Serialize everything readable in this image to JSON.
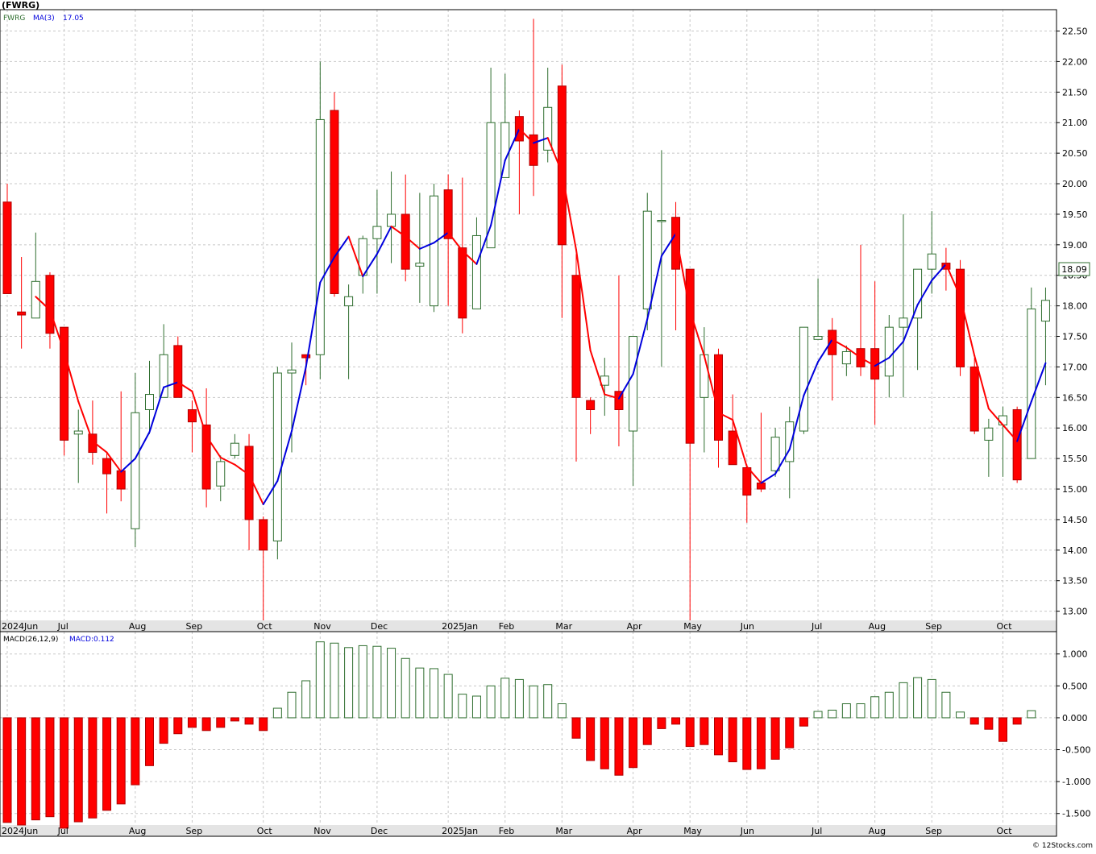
{
  "header": {
    "title": "(FWRG)"
  },
  "price_legend": {
    "symbol": "FWRG",
    "ma_label": "MA(3)",
    "ma_value": "17.05"
  },
  "macd_legend": {
    "label": "MACD(26,12,9)",
    "value_label": "MACD:0.112"
  },
  "last_price": "18.09",
  "footer": {
    "credit": "© 12Stocks.com"
  },
  "colors": {
    "up": "#2f6e2f",
    "down": "#ff0000",
    "ma_up": "#0000dd",
    "ma_down": "#ff0000",
    "grid": "#c8c8c8",
    "axis_band": "#e4e4e4",
    "background": "#ffffff"
  },
  "chart_data": [
    {
      "type": "candlestick",
      "title": "(FWRG)",
      "ylim": [
        12.85,
        22.85
      ],
      "yticks": [
        "13.00",
        "13.50",
        "14.00",
        "14.50",
        "15.00",
        "15.50",
        "16.00",
        "16.50",
        "17.00",
        "17.50",
        "18.00",
        "18.50",
        "19.00",
        "19.50",
        "20.00",
        "20.50",
        "21.00",
        "21.50",
        "22.00",
        "22.50"
      ],
      "x_labels": [
        {
          "label": "2024Jun",
          "index": 0
        },
        {
          "label": "Jul",
          "index": 4
        },
        {
          "label": "Aug",
          "index": 9
        },
        {
          "label": "Sep",
          "index": 13
        },
        {
          "label": "Oct",
          "index": 18
        },
        {
          "label": "Nov",
          "index": 22
        },
        {
          "label": "Dec",
          "index": 26
        },
        {
          "label": "2025Jan",
          "index": 31
        },
        {
          "label": "Feb",
          "index": 35
        },
        {
          "label": "Mar",
          "index": 39
        },
        {
          "label": "Apr",
          "index": 44
        },
        {
          "label": "May",
          "index": 48
        },
        {
          "label": "Jun",
          "index": 52
        },
        {
          "label": "Jul",
          "index": 57
        },
        {
          "label": "Aug",
          "index": 61
        },
        {
          "label": "Sep",
          "index": 65
        },
        {
          "label": "Oct",
          "index": 70
        }
      ],
      "grid": true,
      "ohlc": [
        {
          "o": 19.7,
          "h": 20.0,
          "l": 18.2,
          "c": 18.2
        },
        {
          "o": 17.9,
          "h": 18.8,
          "l": 17.3,
          "c": 17.85
        },
        {
          "o": 17.8,
          "h": 19.2,
          "l": 17.8,
          "c": 18.4
        },
        {
          "o": 18.5,
          "h": 18.55,
          "l": 17.3,
          "c": 17.55
        },
        {
          "o": 17.65,
          "h": 17.65,
          "l": 15.55,
          "c": 15.8
        },
        {
          "o": 15.9,
          "h": 16.3,
          "l": 15.1,
          "c": 15.95
        },
        {
          "o": 15.9,
          "h": 16.45,
          "l": 15.4,
          "c": 15.6
        },
        {
          "o": 15.5,
          "h": 15.6,
          "l": 14.6,
          "c": 15.25
        },
        {
          "o": 15.3,
          "h": 16.6,
          "l": 14.8,
          "c": 15.0
        },
        {
          "o": 14.35,
          "h": 16.9,
          "l": 14.05,
          "c": 16.25
        },
        {
          "o": 16.3,
          "h": 17.1,
          "l": 15.9,
          "c": 16.55
        },
        {
          "o": 16.5,
          "h": 17.7,
          "l": 16.5,
          "c": 17.2
        },
        {
          "o": 17.35,
          "h": 17.5,
          "l": 16.5,
          "c": 16.5
        },
        {
          "o": 16.3,
          "h": 16.45,
          "l": 15.6,
          "c": 16.1
        },
        {
          "o": 16.05,
          "h": 16.65,
          "l": 14.7,
          "c": 15.0
        },
        {
          "o": 15.05,
          "h": 15.55,
          "l": 14.8,
          "c": 15.45
        },
        {
          "o": 15.55,
          "h": 15.9,
          "l": 15.5,
          "c": 15.75
        },
        {
          "o": 15.7,
          "h": 15.9,
          "l": 14.0,
          "c": 14.5
        },
        {
          "o": 14.5,
          "h": 14.55,
          "l": 12.85,
          "c": 14.0
        },
        {
          "o": 14.15,
          "h": 17.0,
          "l": 13.85,
          "c": 16.9
        },
        {
          "o": 16.9,
          "h": 17.4,
          "l": 15.6,
          "c": 16.95
        },
        {
          "o": 17.2,
          "h": 17.2,
          "l": 16.7,
          "c": 17.15
        },
        {
          "o": 17.2,
          "h": 22.0,
          "l": 16.8,
          "c": 21.05
        },
        {
          "o": 21.2,
          "h": 21.5,
          "l": 18.15,
          "c": 18.2
        },
        {
          "o": 18.0,
          "h": 18.35,
          "l": 16.8,
          "c": 18.15
        },
        {
          "o": 18.5,
          "h": 19.15,
          "l": 18.2,
          "c": 19.1
        },
        {
          "o": 19.1,
          "h": 19.9,
          "l": 18.2,
          "c": 19.3
        },
        {
          "o": 19.3,
          "h": 20.2,
          "l": 18.7,
          "c": 19.5
        },
        {
          "o": 19.5,
          "h": 20.15,
          "l": 18.4,
          "c": 18.6
        },
        {
          "o": 18.65,
          "h": 19.85,
          "l": 18.05,
          "c": 18.7
        },
        {
          "o": 18.0,
          "h": 20.0,
          "l": 17.9,
          "c": 19.8
        },
        {
          "o": 19.9,
          "h": 20.15,
          "l": 18.0,
          "c": 19.1
        },
        {
          "o": 18.95,
          "h": 20.1,
          "l": 17.55,
          "c": 17.8
        },
        {
          "o": 17.95,
          "h": 19.45,
          "l": 17.95,
          "c": 19.15
        },
        {
          "o": 18.95,
          "h": 21.9,
          "l": 18.95,
          "c": 21.0
        },
        {
          "o": 20.1,
          "h": 21.8,
          "l": 20.1,
          "c": 21.0
        },
        {
          "o": 21.1,
          "h": 21.2,
          "l": 19.5,
          "c": 20.7
        },
        {
          "o": 20.8,
          "h": 22.7,
          "l": 19.8,
          "c": 20.3
        },
        {
          "o": 20.55,
          "h": 21.9,
          "l": 20.35,
          "c": 21.25
        },
        {
          "o": 21.6,
          "h": 21.95,
          "l": 17.8,
          "c": 19.0
        },
        {
          "o": 18.5,
          "h": 18.85,
          "l": 15.45,
          "c": 16.5
        },
        {
          "o": 16.45,
          "h": 16.5,
          "l": 15.9,
          "c": 16.3
        },
        {
          "o": 16.7,
          "h": 17.15,
          "l": 16.2,
          "c": 16.85
        },
        {
          "o": 16.6,
          "h": 18.5,
          "l": 15.7,
          "c": 16.3
        },
        {
          "o": 15.95,
          "h": 17.5,
          "l": 15.05,
          "c": 17.5
        },
        {
          "o": 17.95,
          "h": 19.85,
          "l": 17.6,
          "c": 19.55
        },
        {
          "o": 19.4,
          "h": 20.55,
          "l": 17.0,
          "c": 19.4
        },
        {
          "o": 19.45,
          "h": 19.7,
          "l": 17.6,
          "c": 18.6
        },
        {
          "o": 18.6,
          "h": 18.6,
          "l": 12.85,
          "c": 15.75
        },
        {
          "o": 16.5,
          "h": 17.65,
          "l": 15.6,
          "c": 17.2
        },
        {
          "o": 17.2,
          "h": 17.3,
          "l": 15.35,
          "c": 15.8
        },
        {
          "o": 15.95,
          "h": 16.55,
          "l": 15.45,
          "c": 15.4
        },
        {
          "o": 15.35,
          "h": 15.4,
          "l": 14.45,
          "c": 14.9
        },
        {
          "o": 15.1,
          "h": 16.25,
          "l": 14.95,
          "c": 15.0
        },
        {
          "o": 15.3,
          "h": 16.0,
          "l": 15.2,
          "c": 15.85
        },
        {
          "o": 15.45,
          "h": 16.35,
          "l": 14.85,
          "c": 16.1
        },
        {
          "o": 15.95,
          "h": 17.65,
          "l": 15.9,
          "c": 17.65
        },
        {
          "o": 17.45,
          "h": 18.45,
          "l": 17.45,
          "c": 17.5
        },
        {
          "o": 17.6,
          "h": 17.8,
          "l": 16.45,
          "c": 17.2
        },
        {
          "o": 17.05,
          "h": 17.35,
          "l": 16.85,
          "c": 17.25
        },
        {
          "o": 17.3,
          "h": 19.0,
          "l": 16.85,
          "c": 17.0
        },
        {
          "o": 17.3,
          "h": 18.4,
          "l": 16.05,
          "c": 16.8
        },
        {
          "o": 16.85,
          "h": 17.85,
          "l": 16.5,
          "c": 17.65
        },
        {
          "o": 17.65,
          "h": 19.5,
          "l": 16.5,
          "c": 17.8
        },
        {
          "o": 17.8,
          "h": 18.6,
          "l": 16.95,
          "c": 18.6
        },
        {
          "o": 18.6,
          "h": 19.55,
          "l": 18.2,
          "c": 18.85
        },
        {
          "o": 18.7,
          "h": 18.95,
          "l": 18.25,
          "c": 18.6
        },
        {
          "o": 18.6,
          "h": 18.75,
          "l": 16.85,
          "c": 17.0
        },
        {
          "o": 17.0,
          "h": 17.15,
          "l": 15.9,
          "c": 15.95
        },
        {
          "o": 15.8,
          "h": 16.15,
          "l": 15.2,
          "c": 16.0
        },
        {
          "o": 16.05,
          "h": 16.35,
          "l": 15.2,
          "c": 16.2
        },
        {
          "o": 16.3,
          "h": 16.35,
          "l": 15.1,
          "c": 15.15
        },
        {
          "o": 15.5,
          "h": 18.3,
          "l": 15.5,
          "c": 17.95
        },
        {
          "o": 17.75,
          "h": 18.3,
          "l": 16.7,
          "c": 18.09
        }
      ],
      "ma": {
        "label": "MA(3)",
        "period": 3,
        "last": 17.05
      }
    },
    {
      "type": "bar",
      "title": "MACD(26,12,9)",
      "ylim": [
        -1.68,
        1.35
      ],
      "yticks": [
        "-1.500",
        "-1.000",
        "-0.500",
        "0.000",
        "0.500",
        "1.000"
      ],
      "series": [
        {
          "name": "MACD",
          "values": [
            -1.64,
            -1.68,
            -1.6,
            -1.55,
            -1.73,
            -1.63,
            -1.57,
            -1.45,
            -1.35,
            -1.05,
            -0.75,
            -0.4,
            -0.25,
            -0.15,
            -0.2,
            -0.15,
            -0.05,
            -0.1,
            -0.2,
            0.15,
            0.4,
            0.58,
            1.19,
            1.17,
            1.1,
            1.13,
            1.12,
            1.09,
            0.93,
            0.78,
            0.77,
            0.68,
            0.37,
            0.34,
            0.5,
            0.62,
            0.6,
            0.5,
            0.52,
            0.22,
            -0.32,
            -0.67,
            -0.8,
            -0.9,
            -0.78,
            -0.42,
            -0.17,
            -0.1,
            -0.45,
            -0.42,
            -0.58,
            -0.69,
            -0.81,
            -0.8,
            -0.65,
            -0.47,
            -0.13,
            0.1,
            0.12,
            0.22,
            0.22,
            0.33,
            0.4,
            0.55,
            0.63,
            0.6,
            0.4,
            0.09,
            -0.1,
            -0.18,
            -0.37,
            -0.1,
            0.112
          ]
        }
      ]
    }
  ]
}
